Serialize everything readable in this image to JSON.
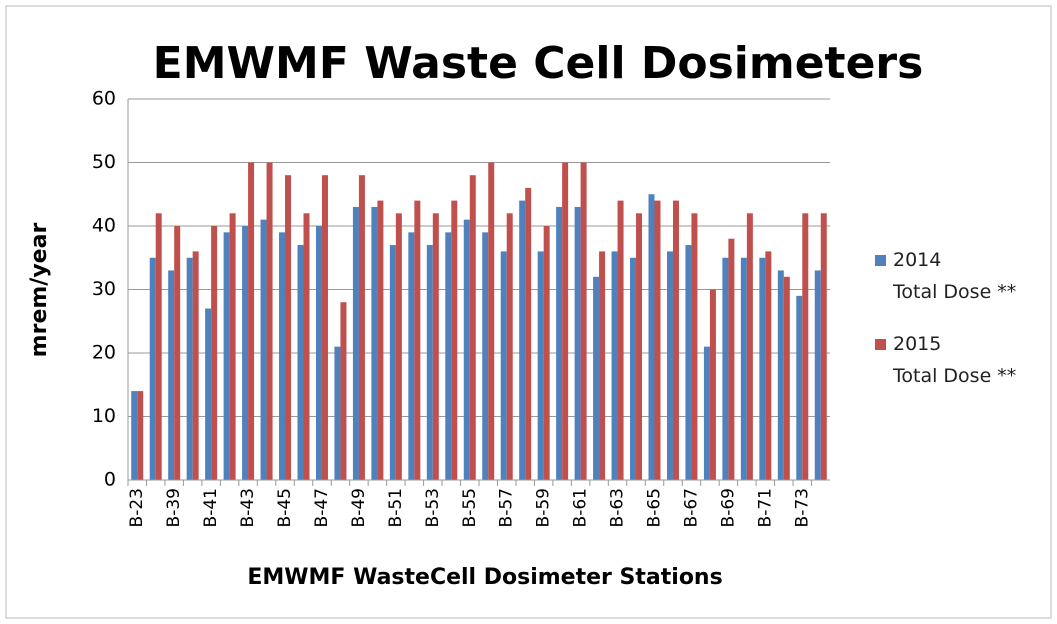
{
  "chart_data": {
    "type": "bar",
    "title": "EMWMF Waste Cell Dosimeters",
    "y_label": "mrem/year",
    "x_label": "EMWMF WasteCell Dosimeter Stations",
    "categories": [
      "B-23",
      null,
      "B-39",
      null,
      "B-41",
      null,
      "B-43",
      null,
      "B-45",
      null,
      "B-47",
      null,
      "B-49",
      null,
      "B-51",
      null,
      "B-53",
      null,
      "B-55",
      null,
      "B-57",
      null,
      "B-59",
      null,
      "B-61",
      null,
      "B-63",
      null,
      "B-65",
      null,
      "B-67",
      null,
      "B-69",
      null,
      "B-71",
      null,
      "B-73",
      null
    ],
    "series": [
      {
        "name": "2014\nTotal Dose **",
        "color": "#4f81bd",
        "values": [
          14,
          35,
          33,
          35,
          27,
          39,
          40,
          41,
          39,
          37,
          40,
          21,
          43,
          43,
          37,
          39,
          37,
          39,
          41,
          39,
          36,
          44,
          36,
          43,
          43,
          32,
          36,
          35,
          45,
          36,
          37,
          21,
          35,
          35,
          35,
          33,
          29,
          33
        ]
      },
      {
        "name": "2015\nTotal Dose **",
        "color": "#c0504d",
        "values": [
          14,
          42,
          40,
          36,
          40,
          42,
          50,
          50,
          48,
          42,
          48,
          28,
          48,
          44,
          42,
          44,
          42,
          44,
          48,
          50,
          42,
          46,
          40,
          50,
          50,
          36,
          44,
          42,
          44,
          44,
          42,
          30,
          38,
          42,
          36,
          32,
          42,
          42
        ]
      }
    ],
    "ylim": [
      0,
      60
    ],
    "yticks": [
      0,
      10,
      20,
      30,
      40,
      50,
      60
    ],
    "grid": true,
    "legend": "right"
  }
}
